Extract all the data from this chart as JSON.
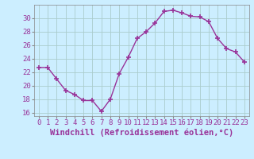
{
  "x": [
    0,
    1,
    2,
    3,
    4,
    5,
    6,
    7,
    8,
    9,
    10,
    11,
    12,
    13,
    14,
    15,
    16,
    17,
    18,
    19,
    20,
    21,
    22,
    23
  ],
  "y": [
    22.7,
    22.7,
    21.0,
    19.3,
    18.7,
    17.8,
    17.8,
    16.2,
    18.0,
    21.8,
    24.2,
    27.0,
    28.0,
    29.3,
    31.0,
    31.2,
    30.8,
    30.3,
    30.2,
    29.5,
    27.0,
    25.5,
    25.0,
    23.5
  ],
  "line_color": "#993399",
  "marker_color": "#993399",
  "bg_color": "#cceeff",
  "grid_color": "#aacccc",
  "xlabel": "Windchill (Refroidissement éolien,°C)",
  "ylim": [
    15.5,
    32.0
  ],
  "xlim": [
    -0.5,
    23.5
  ],
  "yticks": [
    16,
    18,
    20,
    22,
    24,
    26,
    28,
    30
  ],
  "xticks": [
    0,
    1,
    2,
    3,
    4,
    5,
    6,
    7,
    8,
    9,
    10,
    11,
    12,
    13,
    14,
    15,
    16,
    17,
    18,
    19,
    20,
    21,
    22,
    23
  ],
  "tick_color": "#993399",
  "label_color": "#993399",
  "font_size": 6.5,
  "xlabel_fontsize": 7.5
}
